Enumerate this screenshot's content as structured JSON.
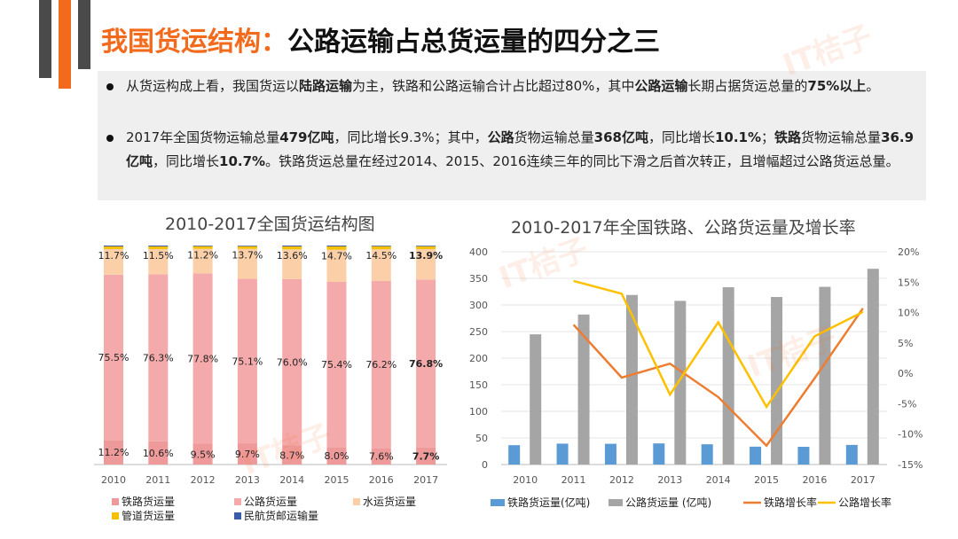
{
  "title": {
    "highlight": "我国货运结构：",
    "main": "公路运输占总货运量的四分之三"
  },
  "notes": [
    {
      "segments": [
        {
          "t": "从货运构成上看，我国货运以",
          "b": false
        },
        {
          "t": "陆路运输",
          "b": true
        },
        {
          "t": "为主，铁路和公路运输合计占比超过80%，其中",
          "b": false
        },
        {
          "t": "公路运输",
          "b": true
        },
        {
          "t": "长期占据货运总量的",
          "b": false
        },
        {
          "t": "75%以上",
          "b": true
        },
        {
          "t": "。",
          "b": false
        }
      ]
    },
    {
      "segments": [
        {
          "t": "2017年全国货物运输总量",
          "b": false
        },
        {
          "t": "479亿吨",
          "b": true
        },
        {
          "t": "，同比增长9.3%；其中，",
          "b": false
        },
        {
          "t": "公路",
          "b": true
        },
        {
          "t": "货物运输总量",
          "b": false
        },
        {
          "t": "368亿吨",
          "b": true
        },
        {
          "t": "，同比增长",
          "b": false
        },
        {
          "t": "10.1%",
          "b": true
        },
        {
          "t": "；",
          "b": false
        },
        {
          "t": "铁路",
          "b": true
        },
        {
          "t": "货物运输总量",
          "b": false
        },
        {
          "t": "36.9亿吨",
          "b": true
        },
        {
          "t": "，同比增长",
          "b": false
        },
        {
          "t": "10.7%",
          "b": true
        },
        {
          "t": "。铁路货运总量在经过2014、2015、2016连续三年的同比下滑之后首次转正，且增幅超过公路货运总量。",
          "b": false
        }
      ]
    }
  ],
  "watermark": "IT桔子",
  "chart_data": [
    {
      "type": "bar",
      "stacked": true,
      "title": "2010-2017全国货运结构图",
      "categories": [
        "2010",
        "2011",
        "2012",
        "2013",
        "2014",
        "2015",
        "2016",
        "2017"
      ],
      "series": [
        {
          "name": "铁路货运量",
          "color": "#ef9a9a",
          "values": [
            11.2,
            10.6,
            9.5,
            9.7,
            8.7,
            8.0,
            7.6,
            7.7
          ],
          "labels": [
            "11.2%",
            "10.6%",
            "9.5%",
            "9.7%",
            "8.7%",
            "8.0%",
            "7.6%",
            "7.7%"
          ]
        },
        {
          "name": "公路货运量",
          "color": "#f4aaaa",
          "values": [
            75.5,
            76.3,
            77.8,
            75.1,
            76.0,
            75.4,
            76.2,
            76.8
          ],
          "labels": [
            "75.5%",
            "76.3%",
            "77.8%",
            "75.1%",
            "76.0%",
            "75.4%",
            "76.2%",
            "76.8%"
          ]
        },
        {
          "name": "水运货运量",
          "color": "#fbd0a8",
          "values": [
            11.7,
            11.5,
            11.2,
            13.7,
            13.6,
            14.7,
            14.5,
            13.9
          ],
          "labels": [
            "11.7%",
            "11.5%",
            "11.2%",
            "13.7%",
            "13.6%",
            "14.7%",
            "14.5%",
            "13.9%"
          ]
        },
        {
          "name": "管道货运量",
          "color": "#f5c000",
          "values": [
            1.2,
            1.2,
            1.2,
            1.2,
            1.3,
            1.5,
            1.4,
            1.3
          ]
        },
        {
          "name": "民航货邮运输量",
          "color": "#3b5ba9",
          "values": [
            0.4,
            0.4,
            0.3,
            0.3,
            0.4,
            0.4,
            0.3,
            0.3
          ]
        }
      ],
      "bold_category": "2017",
      "ylim": [
        0,
        100
      ]
    },
    {
      "type": "bar+line",
      "title": "2010-2017年全国铁路、公路货运量及增长率",
      "categories": [
        "2010",
        "2011",
        "2012",
        "2013",
        "2014",
        "2015",
        "2016",
        "2017"
      ],
      "left_axis": {
        "ticks": [
          "0",
          "50",
          "100",
          "150",
          "200",
          "250",
          "300",
          "350",
          "400"
        ],
        "range": [
          0,
          400
        ]
      },
      "right_axis": {
        "ticks": [
          "-15%",
          "-10%",
          "-5%",
          "0%",
          "5%",
          "10%",
          "15%",
          "20%"
        ],
        "range": [
          -15,
          20
        ]
      },
      "bars": [
        {
          "name": "铁路货运量(亿吨)",
          "color": "#5b9bd5",
          "values": [
            36.4,
            39.3,
            39.0,
            39.7,
            38.1,
            33.6,
            33.3,
            36.9
          ]
        },
        {
          "name": "公路货运量 (亿吨)",
          "color": "#a5a5a5",
          "values": [
            244.8,
            282.0,
            318.8,
            307.7,
            333.3,
            315.0,
            334.1,
            368.0
          ]
        }
      ],
      "lines": [
        {
          "name": "铁路增长率",
          "color": "#ed7d31",
          "values": [
            null,
            8.0,
            -0.7,
            1.6,
            -3.9,
            -11.9,
            -0.8,
            10.7
          ]
        },
        {
          "name": "公路增长率",
          "color": "#ffc000",
          "values": [
            null,
            15.2,
            13.1,
            -3.5,
            8.4,
            -5.5,
            6.1,
            10.1
          ]
        }
      ]
    }
  ]
}
